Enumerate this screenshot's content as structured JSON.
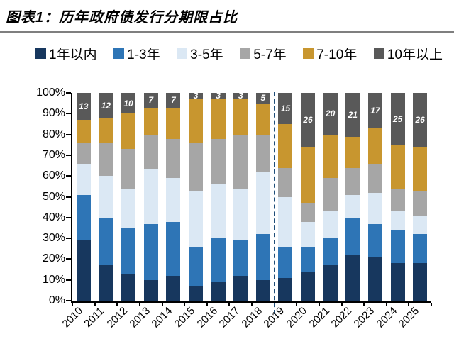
{
  "header": {
    "title": "图表1：历年政府债发行分期限占比"
  },
  "chart_data": {
    "type": "bar",
    "stacked": true,
    "title": "历年政府债发行分期限占比",
    "categories": [
      "2010",
      "2011",
      "2012",
      "2013",
      "2014",
      "2015",
      "2016",
      "2017",
      "2018",
      "2019",
      "2020",
      "2021",
      "2022",
      "2023",
      "2024",
      "2025"
    ],
    "series": [
      {
        "name": "1年以内",
        "color": "#17375e",
        "values": [
          29,
          17,
          13,
          10,
          12,
          7,
          9,
          12,
          10,
          11,
          14,
          17,
          22,
          21,
          18,
          18
        ]
      },
      {
        "name": "1-3年",
        "color": "#2e75b6",
        "values": [
          22,
          23,
          22,
          27,
          26,
          19,
          21,
          17,
          22,
          15,
          12,
          13,
          18,
          16,
          16,
          14
        ]
      },
      {
        "name": "3-5年",
        "color": "#dbe8f4",
        "values": [
          15,
          20,
          19,
          26,
          21,
          27,
          26,
          25,
          30,
          24,
          12,
          13,
          11,
          15,
          9,
          9
        ]
      },
      {
        "name": "5-7年",
        "color": "#a6a6a6",
        "values": [
          10,
          16,
          19,
          17,
          19,
          23,
          22,
          26,
          18,
          14,
          9,
          16,
          13,
          14,
          11,
          12
        ]
      },
      {
        "name": "7-10年",
        "color": "#c8962f",
        "values": [
          11,
          12,
          17,
          13,
          15,
          21,
          19,
          17,
          15,
          21,
          27,
          21,
          15,
          17,
          21,
          21
        ]
      },
      {
        "name": "10年以上",
        "color": "#595959",
        "data_labels": true,
        "values": [
          13,
          12,
          10,
          7,
          7,
          3,
          3,
          3,
          5,
          15,
          26,
          20,
          21,
          17,
          25,
          26
        ]
      }
    ],
    "ylim": [
      0,
      100
    ],
    "yticks": [
      "0%",
      "10%",
      "20%",
      "30%",
      "40%",
      "50%",
      "60%",
      "70%",
      "80%",
      "90%",
      "100%"
    ],
    "xlabel": "",
    "ylabel": "",
    "grid": false,
    "legend_position": "top",
    "divider_after_category": "2018",
    "divider_color": "#1f4e79",
    "axis_color": "#000000"
  }
}
